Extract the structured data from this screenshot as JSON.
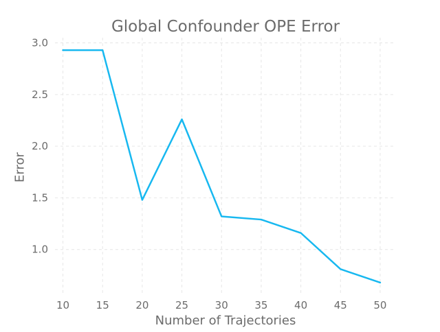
{
  "chart_data": {
    "type": "line",
    "title": "Global Confounder OPE Error",
    "xlabel": "Number of Trajectories",
    "ylabel": "Error",
    "x": [
      10,
      15,
      20,
      25,
      30,
      35,
      40,
      45,
      50
    ],
    "series": [
      {
        "values": [
          2.93,
          2.93,
          1.48,
          2.26,
          1.32,
          1.29,
          1.16,
          0.81,
          0.68
        ]
      }
    ],
    "xticks": [
      "10",
      "15",
      "20",
      "25",
      "30",
      "35",
      "40",
      "45",
      "50"
    ],
    "yticks": [
      "1.0",
      "1.5",
      "2.0",
      "2.5",
      "3.0"
    ],
    "ytick_values": [
      1.0,
      1.5,
      2.0,
      2.5,
      3.0
    ],
    "xlim": [
      9,
      52
    ],
    "ylim": [
      0.56,
      3.05
    ],
    "grid": true,
    "line_color": "#17b8f0",
    "grid_color": "#e6e6e6"
  }
}
